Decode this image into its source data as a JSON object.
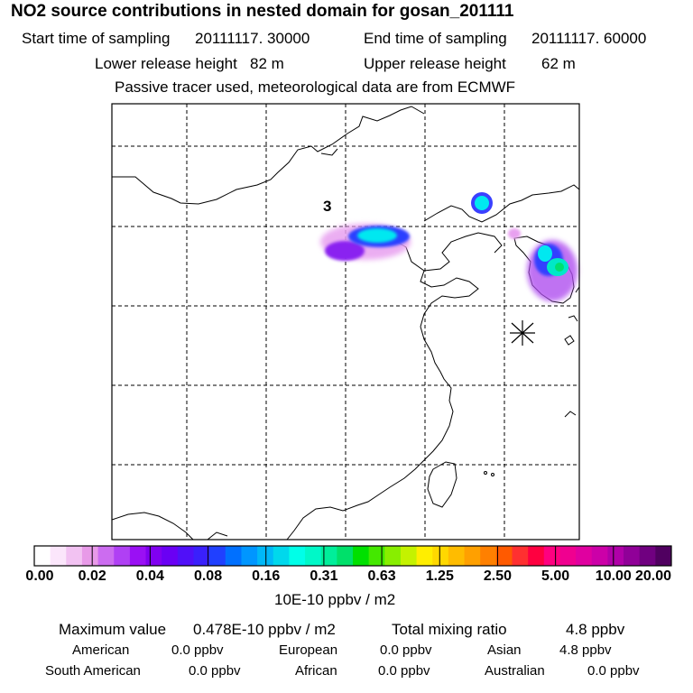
{
  "title": "NO2 source contributions in nested domain for gosan_201111",
  "header": {
    "start_label": "Start time of sampling",
    "start_value": "20111117. 30000",
    "end_label": "End time of sampling",
    "end_value": "20111117. 60000",
    "lower_label": "Lower release height",
    "lower_value": "82 m",
    "upper_label": "Upper release height",
    "upper_value": "62 m",
    "note": "Passive tracer used, meteorological data are from ECMWF"
  },
  "map": {
    "plume_label": "3",
    "receptor_marker": "star-receptor-icon"
  },
  "colorbar": {
    "colors": [
      "#ffffff",
      "#fbe6fb",
      "#f2c2f2",
      "#e89ae8",
      "#cc6cf0",
      "#b040f4",
      "#9a10f4",
      "#8000f0",
      "#6a00f4",
      "#5010f8",
      "#3a20fc",
      "#2040ff",
      "#0070ff",
      "#0096ff",
      "#00b8f8",
      "#00d8ec",
      "#00ffe8",
      "#00f8c8",
      "#00ee9a",
      "#00e06a",
      "#00e000",
      "#44e800",
      "#88ee00",
      "#c4f200",
      "#ffee00",
      "#ffd800",
      "#ffbc00",
      "#ffa000",
      "#ff8000",
      "#ff5a00",
      "#ff3030",
      "#ff0040",
      "#ff0080",
      "#f00090",
      "#e000a0",
      "#cc00a8",
      "#b000a8",
      "#900098",
      "#700080",
      "#500060"
    ],
    "tick_labels": [
      "0.00",
      "0.02",
      "0.04",
      "0.08",
      "0.16",
      "0.31",
      "0.63",
      "1.25",
      "2.50",
      "5.00",
      "10.00",
      "20.00"
    ],
    "unit": "10E-10 ppbv / m2"
  },
  "footer": {
    "max_label": "Maximum value",
    "max_value": "0.478E-10 ppbv / m2",
    "total_label": "Total mixing ratio",
    "total_value": "4.8 ppbv",
    "sources": [
      {
        "name": "American",
        "value": "0.0 ppbv"
      },
      {
        "name": "European",
        "value": "0.0 ppbv"
      },
      {
        "name": "Asian",
        "value": "4.8 ppbv"
      },
      {
        "name": "South American",
        "value": "0.0 ppbv"
      },
      {
        "name": "African",
        "value": "0.0 ppbv"
      },
      {
        "name": "Australian",
        "value": "0.0 ppbv"
      }
    ]
  }
}
